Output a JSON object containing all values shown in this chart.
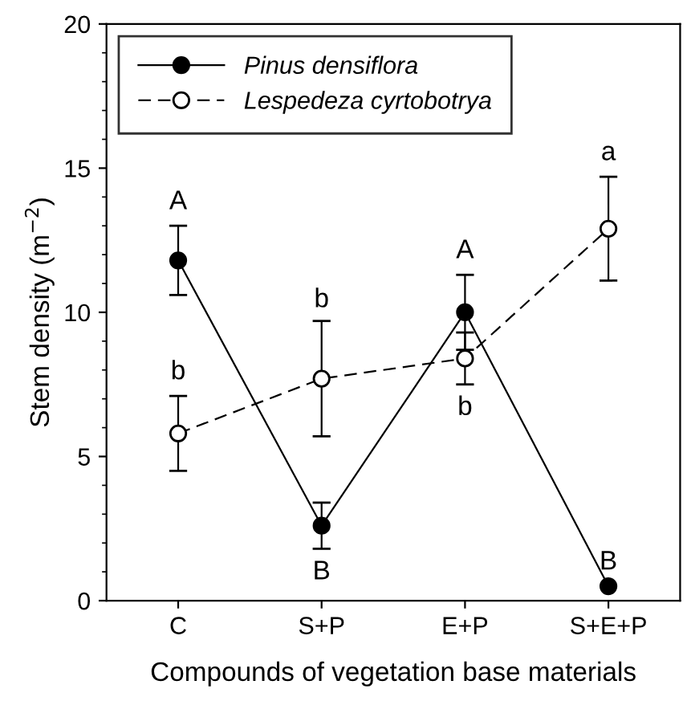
{
  "chart_data": {
    "type": "line",
    "xlabel": "Compounds of vegetation base materials",
    "ylabel": "Stem density (m$^{−2}$)",
    "categories": [
      "C",
      "S+P",
      "E+P",
      "S+E+P"
    ],
    "series": [
      {
        "name": "Pinus densiflora",
        "color": "#000000",
        "marker": "circle",
        "line_style": "solid",
        "values": [
          11.8,
          2.6,
          10.0,
          0.5
        ],
        "errors": [
          1.2,
          0.8,
          1.3,
          null
        ]
      },
      {
        "name": "Lespedeza cyrtobotrya",
        "color": "#000000",
        "marker": "circle",
        "line_style": "dashed",
        "values": [
          5.8,
          7.7,
          8.4,
          12.9
        ],
        "errors": [
          1.3,
          2.0,
          [
            7.5,
            9.3
          ],
          1.8
        ]
      }
    ],
    "ylim": [
      0,
      20
    ],
    "yticks": [
      0,
      5,
      10,
      15,
      20
    ],
    "legend": "top left",
    "grid": false,
    "annotations": [
      {
        "text": "A",
        "x": "C",
        "y": 13.0
      },
      {
        "text": "b",
        "x": "C",
        "y": 7.1
      },
      {
        "text": "b",
        "x": "S+P",
        "y": 9.6
      },
      {
        "text": "B",
        "x": "S+P",
        "y": 1.8
      },
      {
        "text": "A",
        "x": "E+P",
        "y": 11.3
      },
      {
        "text": "b",
        "x": "E+P",
        "y": 7.5
      },
      {
        "text": "a",
        "x": "S+E+P",
        "y": 14.7
      },
      {
        "text": "B",
        "x": "S+E+P",
        "y": 0.5
      }
    ]
  }
}
